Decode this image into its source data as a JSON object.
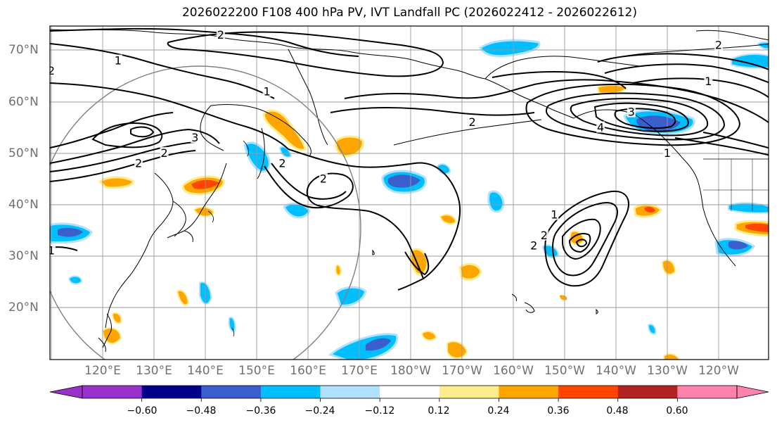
{
  "title": "2026022200 F108 400 hPa PV, IVT Landfall PC (2026022412 - 2026022612)",
  "latitude_labels": [
    "20°N",
    "30°N",
    "40°N",
    "50°N",
    "60°N",
    "70°N"
  ],
  "longitude_labels": [
    "120°E",
    "130°E",
    "140°E",
    "150°E",
    "160°E",
    "170°E",
    "180°W",
    "170°W",
    "160°W",
    "150°W",
    "140°W",
    "130°W",
    "120°W"
  ],
  "colorbar": {
    "ticks": [
      "−0.60",
      "−0.48",
      "−0.36",
      "−0.24",
      "−0.12",
      "0.12",
      "0.24",
      "0.36",
      "0.48",
      "0.60"
    ],
    "colors": [
      "#9932cc",
      "#00008b",
      "#3a5fcd",
      "#00bfff",
      "#b0e2ff",
      "#ffffff",
      "#ffec8b",
      "#ffa500",
      "#ff4500",
      "#b22222",
      "#ff82ab"
    ],
    "extend": "both"
  },
  "contour_labels": [
    {
      "text": "2",
      "lon": 143,
      "lat": 73
    },
    {
      "text": "1",
      "lon": 123,
      "lat": 68
    },
    {
      "text": "2",
      "lon": 110,
      "lat": 66
    },
    {
      "text": "1",
      "lon": 152,
      "lat": 62
    },
    {
      "text": "3",
      "lon": 138,
      "lat": 53
    },
    {
      "text": "2",
      "lon": 132,
      "lat": 50
    },
    {
      "text": "2",
      "lon": 127,
      "lat": 48
    },
    {
      "text": "2",
      "lon": 155,
      "lat": 48
    },
    {
      "text": "2",
      "lon": 163,
      "lat": 45
    },
    {
      "text": "2",
      "lon": -168,
      "lat": 56
    },
    {
      "text": "4",
      "lon": -143,
      "lat": 55
    },
    {
      "text": "3",
      "lon": -137,
      "lat": 58
    },
    {
      "text": "1",
      "lon": -130,
      "lat": 50
    },
    {
      "text": "1",
      "lon": -122,
      "lat": 64
    },
    {
      "text": "2",
      "lon": -120,
      "lat": 71
    },
    {
      "text": "1",
      "lon": -152,
      "lat": 38
    },
    {
      "text": "2",
      "lon": -154,
      "lat": 34
    },
    {
      "text": "2",
      "lon": -156,
      "lat": 32
    },
    {
      "text": "1",
      "lon": 110,
      "lat": 31
    }
  ]
}
